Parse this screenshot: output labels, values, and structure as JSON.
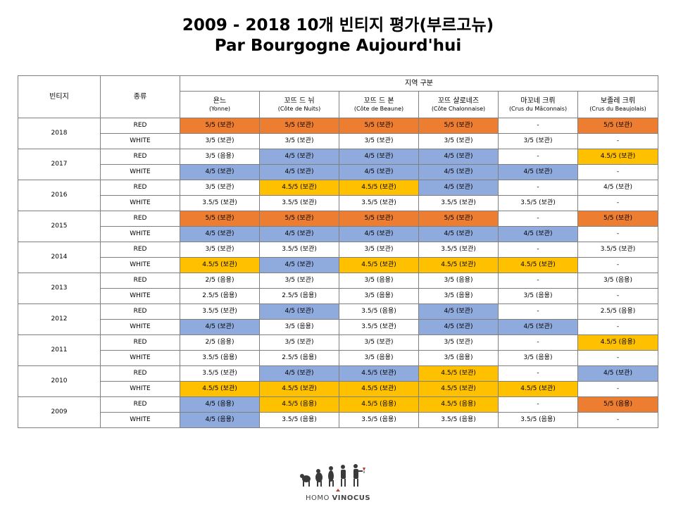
{
  "title": {
    "line1": "2009 - 2018 10개 빈티지 평가(부르고뉴)",
    "line2": "Par Bourgogne Aujourd'hui"
  },
  "table": {
    "col_vintage": "빈티지",
    "col_type": "종류",
    "region_header": "지역 구분",
    "regions": [
      {
        "name": "욘느",
        "sub": "(Yonne)"
      },
      {
        "name": "꼬뜨 드 뉘",
        "sub": "(Côte de Nuits)"
      },
      {
        "name": "꼬뜨 드 본",
        "sub": "(Côte de Beaune)"
      },
      {
        "name": "꼬뜨 샬로네즈",
        "sub": "(Côte Chalonnaise)"
      },
      {
        "name": "마꼬네 크뤼",
        "sub": "(Crus du Mâconnais)"
      },
      {
        "name": "보졸레 크뤼",
        "sub": "(Crus du Beaujolais)"
      }
    ],
    "color_legend": {
      "orange": "#ed7d31",
      "blue": "#8faadc",
      "gold": "#ffc000"
    },
    "vintages": [
      {
        "year": "2018",
        "rows": [
          {
            "type": "RED",
            "cells": [
              {
                "v": "5/5 (보관)",
                "c": "orange"
              },
              {
                "v": "5/5 (보관)",
                "c": "orange"
              },
              {
                "v": "5/5 (보관)",
                "c": "orange"
              },
              {
                "v": "5/5 (보관)",
                "c": "orange"
              },
              {
                "v": "-",
                "c": ""
              },
              {
                "v": "5/5 (보관)",
                "c": "orange"
              }
            ]
          },
          {
            "type": "WHITE",
            "cells": [
              {
                "v": "3/5 (보관)",
                "c": ""
              },
              {
                "v": "3/5 (보관)",
                "c": ""
              },
              {
                "v": "3/5 (보관)",
                "c": ""
              },
              {
                "v": "3/5 (보관)",
                "c": ""
              },
              {
                "v": "3/5 (보관)",
                "c": ""
              },
              {
                "v": "-",
                "c": ""
              }
            ]
          }
        ]
      },
      {
        "year": "2017",
        "rows": [
          {
            "type": "RED",
            "cells": [
              {
                "v": "3/5 (음용)",
                "c": ""
              },
              {
                "v": "4/5 (보관)",
                "c": "blue"
              },
              {
                "v": "4/5 (보관)",
                "c": "blue"
              },
              {
                "v": "4/5 (보관)",
                "c": "blue"
              },
              {
                "v": "-",
                "c": ""
              },
              {
                "v": "4.5/5 (보관)",
                "c": "gold"
              }
            ]
          },
          {
            "type": "WHITE",
            "cells": [
              {
                "v": "4/5 (보관)",
                "c": "blue"
              },
              {
                "v": "4/5 (보관)",
                "c": "blue"
              },
              {
                "v": "4/5 (보관)",
                "c": "blue"
              },
              {
                "v": "4/5 (보관)",
                "c": "blue"
              },
              {
                "v": "4/5 (보관)",
                "c": "blue"
              },
              {
                "v": "-",
                "c": ""
              }
            ]
          }
        ]
      },
      {
        "year": "2016",
        "rows": [
          {
            "type": "RED",
            "cells": [
              {
                "v": "3/5 (보관)",
                "c": ""
              },
              {
                "v": "4.5/5 (보관)",
                "c": "gold"
              },
              {
                "v": "4.5/5 (보관)",
                "c": "gold"
              },
              {
                "v": "4/5 (보관)",
                "c": "blue"
              },
              {
                "v": "-",
                "c": ""
              },
              {
                "v": "4/5 (보관)",
                "c": ""
              }
            ]
          },
          {
            "type": "WHITE",
            "cells": [
              {
                "v": "3.5/5 (보관)",
                "c": ""
              },
              {
                "v": "3.5/5 (보관)",
                "c": ""
              },
              {
                "v": "3.5/5 (보관)",
                "c": ""
              },
              {
                "v": "3.5/5 (보관)",
                "c": ""
              },
              {
                "v": "3.5/5 (보관)",
                "c": ""
              },
              {
                "v": "-",
                "c": ""
              }
            ]
          }
        ]
      },
      {
        "year": "2015",
        "rows": [
          {
            "type": "RED",
            "cells": [
              {
                "v": "5/5 (보관)",
                "c": "orange"
              },
              {
                "v": "5/5 (보관)",
                "c": "orange"
              },
              {
                "v": "5/5 (보관)",
                "c": "orange"
              },
              {
                "v": "5/5 (보관)",
                "c": "orange"
              },
              {
                "v": "-",
                "c": ""
              },
              {
                "v": "5/5 (보관)",
                "c": "orange"
              }
            ]
          },
          {
            "type": "WHITE",
            "cells": [
              {
                "v": "4/5 (보관)",
                "c": "blue"
              },
              {
                "v": "4/5 (보관)",
                "c": "blue"
              },
              {
                "v": "4/5 (보관)",
                "c": "blue"
              },
              {
                "v": "4/5 (보관)",
                "c": "blue"
              },
              {
                "v": "4/5 (보관)",
                "c": "blue"
              },
              {
                "v": "-",
                "c": ""
              }
            ]
          }
        ]
      },
      {
        "year": "2014",
        "rows": [
          {
            "type": "RED",
            "cells": [
              {
                "v": "3/5 (보관)",
                "c": ""
              },
              {
                "v": "3.5/5 (보관)",
                "c": ""
              },
              {
                "v": "3/5 (보관)",
                "c": ""
              },
              {
                "v": "3.5/5 (보관)",
                "c": ""
              },
              {
                "v": "-",
                "c": ""
              },
              {
                "v": "3.5/5 (보관)",
                "c": ""
              }
            ]
          },
          {
            "type": "WHITE",
            "cells": [
              {
                "v": "4.5/5 (보관)",
                "c": "gold"
              },
              {
                "v": "4/5 (보관)",
                "c": "blue"
              },
              {
                "v": "4.5/5 (보관)",
                "c": "gold"
              },
              {
                "v": "4.5/5 (보관)",
                "c": "gold"
              },
              {
                "v": "4.5/5 (보관)",
                "c": "gold"
              },
              {
                "v": "-",
                "c": ""
              }
            ]
          }
        ]
      },
      {
        "year": "2013",
        "rows": [
          {
            "type": "RED",
            "cells": [
              {
                "v": "2/5 (음용)",
                "c": ""
              },
              {
                "v": "3/5 (보관)",
                "c": ""
              },
              {
                "v": "3/5 (음용)",
                "c": ""
              },
              {
                "v": "3/5 (음용)",
                "c": ""
              },
              {
                "v": "-",
                "c": ""
              },
              {
                "v": "3/5 (음용)",
                "c": ""
              }
            ]
          },
          {
            "type": "WHITE",
            "cells": [
              {
                "v": "2.5/5 (음용)",
                "c": ""
              },
              {
                "v": "2.5/5 (음용)",
                "c": ""
              },
              {
                "v": "3/5 (음용)",
                "c": ""
              },
              {
                "v": "3/5 (음용)",
                "c": ""
              },
              {
                "v": "3/5 (음용)",
                "c": ""
              },
              {
                "v": "-",
                "c": ""
              }
            ]
          }
        ]
      },
      {
        "year": "2012",
        "rows": [
          {
            "type": "RED",
            "cells": [
              {
                "v": "3.5/5 (보관)",
                "c": ""
              },
              {
                "v": "4/5 (보관)",
                "c": "blue"
              },
              {
                "v": "3.5/5 (음용)",
                "c": ""
              },
              {
                "v": "4/5 (보관)",
                "c": "blue"
              },
              {
                "v": "-",
                "c": ""
              },
              {
                "v": "2.5/5 (음용)",
                "c": ""
              }
            ]
          },
          {
            "type": "WHITE",
            "cells": [
              {
                "v": "4/5 (보관)",
                "c": "blue"
              },
              {
                "v": "3/5 (음용)",
                "c": ""
              },
              {
                "v": "3.5/5 (보관)",
                "c": ""
              },
              {
                "v": "4/5 (보관)",
                "c": "blue"
              },
              {
                "v": "4/5 (보관)",
                "c": "blue"
              },
              {
                "v": "-",
                "c": ""
              }
            ]
          }
        ]
      },
      {
        "year": "2011",
        "rows": [
          {
            "type": "RED",
            "cells": [
              {
                "v": "2/5 (음용)",
                "c": ""
              },
              {
                "v": "3/5 (보관)",
                "c": ""
              },
              {
                "v": "3/5 (보관)",
                "c": ""
              },
              {
                "v": "3/5 (보관)",
                "c": ""
              },
              {
                "v": "-",
                "c": ""
              },
              {
                "v": "4.5/5 (음용)",
                "c": "gold"
              }
            ]
          },
          {
            "type": "WHITE",
            "cells": [
              {
                "v": "3.5/5 (음용)",
                "c": ""
              },
              {
                "v": "2.5/5 (음용)",
                "c": ""
              },
              {
                "v": "3/5 (음용)",
                "c": ""
              },
              {
                "v": "3/5 (음용)",
                "c": ""
              },
              {
                "v": "3/5 (음용)",
                "c": ""
              },
              {
                "v": "-",
                "c": ""
              }
            ]
          }
        ]
      },
      {
        "year": "2010",
        "rows": [
          {
            "type": "RED",
            "cells": [
              {
                "v": "3.5/5 (보관)",
                "c": ""
              },
              {
                "v": "4/5 (보관)",
                "c": "blue"
              },
              {
                "v": "4.5/5 (보관)",
                "c": "blue"
              },
              {
                "v": "4.5/5 (보관)",
                "c": "gold"
              },
              {
                "v": "-",
                "c": ""
              },
              {
                "v": "4/5 (보관)",
                "c": "blue"
              }
            ]
          },
          {
            "type": "WHITE",
            "cells": [
              {
                "v": "4.5/5 (보관)",
                "c": "gold"
              },
              {
                "v": "4.5/5 (보관)",
                "c": "gold"
              },
              {
                "v": "4.5/5 (보관)",
                "c": "gold"
              },
              {
                "v": "4.5/5 (보관)",
                "c": "gold"
              },
              {
                "v": "4.5/5 (보관)",
                "c": "gold"
              },
              {
                "v": "-",
                "c": ""
              }
            ]
          }
        ]
      },
      {
        "year": "2009",
        "rows": [
          {
            "type": "RED",
            "cells": [
              {
                "v": "4/5 (음용)",
                "c": "blue"
              },
              {
                "v": "4.5/5 (음용)",
                "c": "gold"
              },
              {
                "v": "4.5/5 (음용)",
                "c": "gold"
              },
              {
                "v": "4.5/5 (음용)",
                "c": "gold"
              },
              {
                "v": "-",
                "c": ""
              },
              {
                "v": "5/5 (음용)",
                "c": "orange"
              }
            ]
          },
          {
            "type": "WHITE",
            "cells": [
              {
                "v": "4/5 (음용)",
                "c": "blue"
              },
              {
                "v": "3.5/5 (음용)",
                "c": ""
              },
              {
                "v": "3.5/5 (음용)",
                "c": ""
              },
              {
                "v": "3.5/5 (음용)",
                "c": ""
              },
              {
                "v": "3.5/5 (음용)",
                "c": ""
              },
              {
                "v": "-",
                "c": ""
              }
            ]
          }
        ]
      }
    ]
  },
  "logo": {
    "text_part1": "HOMO ",
    "text_part2": "VINOCUS",
    "accent": "#c0392b"
  }
}
